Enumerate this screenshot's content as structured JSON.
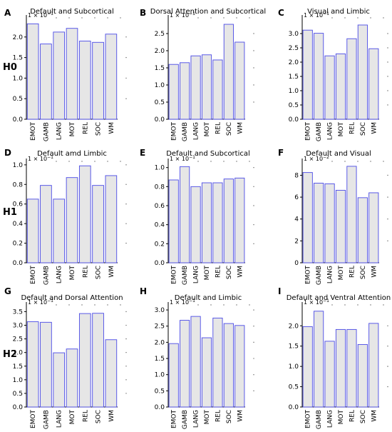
{
  "row_labels": [
    "H0",
    "H1",
    "H2"
  ],
  "style": {
    "bar_fill": "#e6e6e6",
    "bar_stroke": "#4a4ae6",
    "axis_color": "#000000",
    "dot_color": "#666666"
  },
  "chart_data": [
    {
      "panel": "A",
      "title": "Default and Subcortical",
      "type": "bar",
      "categories": [
        "EMOT",
        "GAMB",
        "LANG",
        "MOT",
        "REL",
        "SOC",
        "WM"
      ],
      "values": [
        2.32,
        1.83,
        2.12,
        2.21,
        1.9,
        1.87,
        2.07
      ],
      "ylim": [
        0,
        2.5
      ],
      "yticks": [
        0.0,
        0.5,
        1.0,
        1.5,
        2.0
      ],
      "multiplier": "1e-1"
    },
    {
      "panel": "B",
      "title": "Dorsal Attention and Subcortical",
      "type": "bar",
      "categories": [
        "EMOT",
        "GAMB",
        "LANG",
        "MOT",
        "REL",
        "SOC",
        "WM"
      ],
      "values": [
        1.6,
        1.65,
        1.85,
        1.88,
        1.73,
        2.77,
        2.25
      ],
      "ylim": [
        0,
        3.0
      ],
      "yticks": [
        0.0,
        0.5,
        1.0,
        1.5,
        2.0,
        2.5
      ],
      "multiplier": "1e-1"
    },
    {
      "panel": "C",
      "title": "Visual and Limbic",
      "type": "bar",
      "categories": [
        "EMOT",
        "GAMB",
        "LANG",
        "MOT",
        "REL",
        "SOC",
        "WM"
      ],
      "values": [
        3.12,
        3.01,
        2.22,
        2.29,
        2.82,
        3.3,
        2.47
      ],
      "ylim": [
        0,
        3.6
      ],
      "yticks": [
        0.0,
        0.5,
        1.0,
        1.5,
        2.0,
        2.5,
        3.0
      ],
      "multiplier": "1e-1"
    },
    {
      "panel": "D",
      "title": "Default amd Limbic",
      "type": "bar",
      "categories": [
        "EMOT",
        "GAMB",
        "LANG",
        "MOT",
        "REL",
        "SOC",
        "WM"
      ],
      "values": [
        0.65,
        0.79,
        0.65,
        0.87,
        0.99,
        0.79,
        0.89
      ],
      "ylim": [
        0,
        1.05
      ],
      "yticks": [
        0.0,
        0.2,
        0.4,
        0.6,
        0.8,
        1.0
      ],
      "multiplier": "1e-1"
    },
    {
      "panel": "E",
      "title": "Default and Subcortical",
      "type": "bar",
      "categories": [
        "EMOT",
        "GAMB",
        "LANG",
        "MOT",
        "REL",
        "SOC",
        "WM"
      ],
      "values": [
        0.87,
        1.01,
        0.8,
        0.84,
        0.84,
        0.88,
        0.89
      ],
      "ylim": [
        0,
        1.08
      ],
      "yticks": [
        0.0,
        0.2,
        0.4,
        0.6,
        0.8,
        1.0
      ],
      "multiplier": "1e-1"
    },
    {
      "panel": "F",
      "title": "Default and Visual",
      "type": "bar",
      "categories": [
        "EMOT",
        "GAMB",
        "LANG",
        "MOT",
        "REL",
        "SOC",
        "WM"
      ],
      "values": [
        8.25,
        7.28,
        7.22,
        6.63,
        8.82,
        5.95,
        6.4
      ],
      "ylim": [
        0,
        9.4
      ],
      "yticks": [
        0,
        2,
        4,
        6,
        8
      ],
      "multiplier": "1e-2"
    },
    {
      "panel": "G",
      "title": "Default and Dorsal Attention",
      "type": "bar",
      "categories": [
        "EMOT",
        "GAMB",
        "LANG",
        "MOT",
        "REL",
        "SOC",
        "WM"
      ],
      "values": [
        3.13,
        3.11,
        1.99,
        2.13,
        3.43,
        3.44,
        2.47
      ],
      "ylim": [
        0,
        3.8
      ],
      "yticks": [
        0.0,
        0.5,
        1.0,
        1.5,
        2.0,
        2.5,
        3.0,
        3.5
      ],
      "multiplier": "1e-1"
    },
    {
      "panel": "H",
      "title": "Default and Limbic",
      "type": "bar",
      "categories": [
        "EMOT",
        "GAMB",
        "LANG",
        "MOT",
        "REL",
        "SOC",
        "WM"
      ],
      "values": [
        1.96,
        2.68,
        2.8,
        2.14,
        2.75,
        2.58,
        2.52
      ],
      "ylim": [
        0,
        3.2
      ],
      "yticks": [
        0.0,
        0.5,
        1.0,
        1.5,
        2.0,
        2.5,
        3.0
      ],
      "multiplier": "1e-1"
    },
    {
      "panel": "I",
      "title": "Default and Ventral Attention",
      "type": "bar",
      "categories": [
        "EMOT",
        "GAMB",
        "LANG",
        "MOT",
        "REL",
        "SOC",
        "WM"
      ],
      "values": [
        1.98,
        2.36,
        1.62,
        1.91,
        1.91,
        1.54,
        2.06
      ],
      "ylim": [
        0,
        2.55
      ],
      "yticks": [
        0.0,
        0.5,
        1.0,
        1.5,
        2.0
      ],
      "multiplier": "1e-1"
    }
  ]
}
